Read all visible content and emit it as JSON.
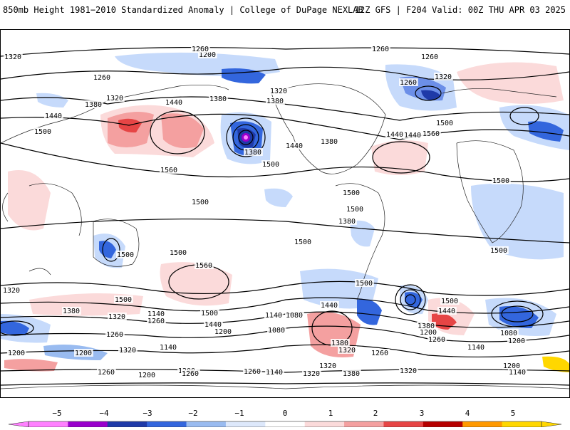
{
  "header": {
    "title_left": "850mb Height 1981−2010 Standardized Anomaly | College of DuPage NEXLAB",
    "title_right": "12Z GFS | F204 Valid: 00Z THU APR 03 2025"
  },
  "map": {
    "contour_labels": [
      "1320",
      "1200",
      "1260",
      "1260",
      "1260",
      "1260",
      "1320",
      "1260",
      "1320",
      "1380",
      "1440",
      "1320",
      "1380",
      "1440",
      "1500",
      "1380",
      "1560",
      "1440",
      "1380",
      "1380",
      "1500",
      "1440",
      "1560",
      "1500",
      "1440",
      "1500",
      "1500",
      "1380",
      "1500",
      "1500",
      "1500",
      "1500",
      "1560",
      "1500",
      "1500",
      "1500",
      "1500",
      "1380",
      "1440",
      "1320",
      "1140",
      "1260",
      "1080",
      "1500",
      "1200",
      "1140",
      "1080",
      "1260",
      "1200",
      "1320",
      "1140",
      "1200",
      "1140",
      "1260",
      "1440",
      "1380",
      "1320",
      "1260",
      "1500",
      "1440",
      "1380",
      "1200",
      "1080",
      "1140",
      "1200",
      "1260",
      "1320",
      "1380",
      "1320",
      "1260",
      "1200",
      "1140",
      "1200",
      "1320",
      "1260",
      "1200",
      "1320"
    ]
  },
  "colorbar": {
    "labels": [
      "−5",
      "−4",
      "−3",
      "−2",
      "−1",
      "0",
      "1",
      "2",
      "3",
      "4",
      "5"
    ],
    "colors": [
      "#ff80ff",
      "#9900cc",
      "#1f3aa8",
      "#3366dd",
      "#99bbf0",
      "#dde8fb",
      "#ffffff",
      "#fbdada",
      "#f4a0a0",
      "#e64545",
      "#b50000",
      "#ff9900",
      "#ffd700"
    ]
  }
}
